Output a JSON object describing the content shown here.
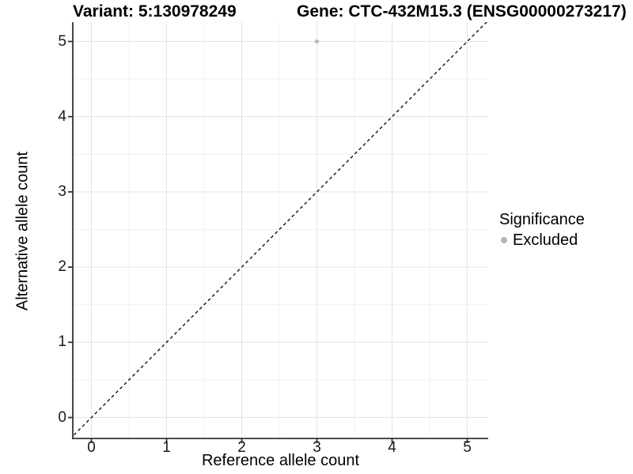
{
  "header": {
    "variant_title": "Variant: 5:130978249",
    "gene_title": "Gene: CTC-432M15.3 (ENSG00000273217)"
  },
  "chart_data": {
    "type": "scatter",
    "title": "Variant: 5:130978249  Gene: CTC-432M15.3 (ENSG00000273217)",
    "xlabel": "Reference allele count",
    "ylabel": "Alternative allele count",
    "xlim": [
      -0.25,
      5.27
    ],
    "ylim": [
      -0.28,
      5.26
    ],
    "x_ticks": [
      0,
      1,
      2,
      3,
      4,
      5
    ],
    "y_ticks": [
      0,
      1,
      2,
      3,
      4,
      5
    ],
    "minor_ticks_x": [
      0.5,
      1.5,
      2.5,
      3.5,
      4.5
    ],
    "minor_ticks_y": [
      0.5,
      1.5,
      2.5,
      3.5,
      4.5
    ],
    "grid": "major+minor",
    "reference_line": {
      "type": "identity-diagonal",
      "style": "dashed",
      "color": "#000000"
    },
    "series": [
      {
        "name": "Excluded",
        "color": "#bdbdbd",
        "points": [
          {
            "x": 3,
            "y": 5
          }
        ]
      }
    ],
    "legend": {
      "title": "Significance",
      "position": "right",
      "entries": [
        {
          "label": "Excluded",
          "color": "#b5b5b5"
        }
      ]
    },
    "colors": {
      "grid_major": "#e4e4e4",
      "grid_minor": "#f1f1f1",
      "axis_line": "#333333",
      "point": "#bdbdbd",
      "background": "#ffffff"
    }
  }
}
